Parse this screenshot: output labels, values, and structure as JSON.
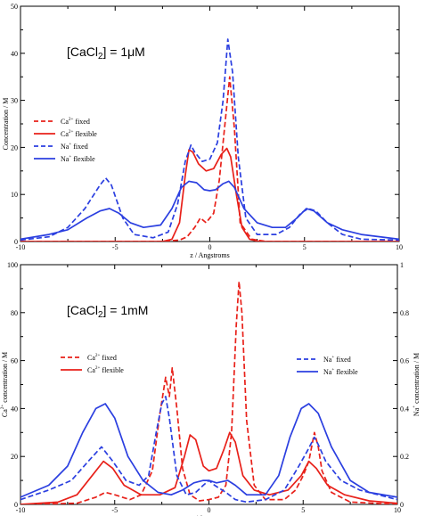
{
  "colors": {
    "red": "#e8211a",
    "blue": "#2b3fe0",
    "axis": "#000000"
  },
  "chart_data": [
    {
      "type": "line",
      "annotation": {
        "pre": "[CaCl",
        "sub": "2",
        "post": "] = 1μM"
      },
      "xlabel": "z / Angstroms",
      "ylabel": "Concentration / M",
      "xlim": [
        -10,
        10
      ],
      "ylim": [
        0,
        50
      ],
      "xticks": [
        -10,
        -5,
        0,
        5,
        10
      ],
      "yticks": [
        0,
        10,
        20,
        30,
        40,
        50
      ],
      "xtick_labels": [
        "-10",
        "-5",
        "0",
        "5",
        "10"
      ],
      "ytick_labels": [
        "0",
        "10",
        "20",
        "30",
        "40",
        "50"
      ],
      "legend_position": "center-left",
      "legend": [
        {
          "ion": "Ca",
          "sup": "2+",
          "label": "fixed",
          "color": "red",
          "style": "dashed"
        },
        {
          "ion": "Ca",
          "sup": "2+",
          "label": "flexible",
          "color": "red",
          "style": "solid"
        },
        {
          "ion": "Na",
          "sup": "+",
          "label": "fixed",
          "color": "blue",
          "style": "dashed"
        },
        {
          "ion": "Na",
          "sup": "+",
          "label": "flexible",
          "color": "blue",
          "style": "solid"
        }
      ],
      "series": [
        {
          "color": "red",
          "style": "dashed",
          "points": [
            [
              -10,
              0
            ],
            [
              -2.5,
              0
            ],
            [
              -1.6,
              0.3
            ],
            [
              -1.2,
              1
            ],
            [
              -0.8,
              3
            ],
            [
              -0.5,
              5
            ],
            [
              -0.2,
              4
            ],
            [
              0.2,
              6
            ],
            [
              0.5,
              13
            ],
            [
              0.8,
              25
            ],
            [
              1.05,
              35
            ],
            [
              1.3,
              24
            ],
            [
              1.6,
              4
            ],
            [
              2.2,
              0.5
            ],
            [
              3,
              0
            ],
            [
              10,
              0
            ]
          ]
        },
        {
          "color": "red",
          "style": "solid",
          "points": [
            [
              -10,
              0
            ],
            [
              -2.5,
              0
            ],
            [
              -2,
              0.5
            ],
            [
              -1.6,
              4
            ],
            [
              -1.3,
              14
            ],
            [
              -1.1,
              19.5
            ],
            [
              -0.9,
              19
            ],
            [
              -0.6,
              16.5
            ],
            [
              -0.2,
              15
            ],
            [
              0.2,
              15.5
            ],
            [
              0.6,
              18.5
            ],
            [
              0.9,
              19.8
            ],
            [
              1.1,
              18
            ],
            [
              1.4,
              10
            ],
            [
              1.7,
              3
            ],
            [
              2.1,
              0.5
            ],
            [
              2.6,
              0
            ],
            [
              10,
              0
            ]
          ]
        },
        {
          "color": "blue",
          "style": "dashed",
          "points": [
            [
              -10,
              0.3
            ],
            [
              -8.5,
              1
            ],
            [
              -7.5,
              3
            ],
            [
              -6.6,
              7
            ],
            [
              -5.8,
              12
            ],
            [
              -5.5,
              13.5
            ],
            [
              -5.2,
              12
            ],
            [
              -4.6,
              5
            ],
            [
              -4,
              1.5
            ],
            [
              -3,
              0.8
            ],
            [
              -2.2,
              2
            ],
            [
              -1.7,
              8
            ],
            [
              -1.3,
              17
            ],
            [
              -1,
              20.5
            ],
            [
              -0.8,
              19
            ],
            [
              -0.4,
              17
            ],
            [
              0,
              17.5
            ],
            [
              0.4,
              21
            ],
            [
              0.7,
              30
            ],
            [
              0.95,
              43
            ],
            [
              1.2,
              36
            ],
            [
              1.5,
              18
            ],
            [
              1.9,
              5
            ],
            [
              2.5,
              1.5
            ],
            [
              3.5,
              1.5
            ],
            [
              4.2,
              3
            ],
            [
              4.8,
              6
            ],
            [
              5.2,
              7
            ],
            [
              5.6,
              6.5
            ],
            [
              6.2,
              4
            ],
            [
              7,
              1.5
            ],
            [
              8,
              0.5
            ],
            [
              10,
              0.3
            ]
          ]
        },
        {
          "color": "blue",
          "style": "solid",
          "points": [
            [
              -10,
              0.5
            ],
            [
              -8.5,
              1.5
            ],
            [
              -7.5,
              2.5
            ],
            [
              -6.5,
              5
            ],
            [
              -5.8,
              6.5
            ],
            [
              -5.3,
              7
            ],
            [
              -4.8,
              6
            ],
            [
              -4.2,
              4
            ],
            [
              -3.5,
              3
            ],
            [
              -2.6,
              3.5
            ],
            [
              -2,
              7
            ],
            [
              -1.5,
              11.5
            ],
            [
              -1.1,
              12.8
            ],
            [
              -0.7,
              12.5
            ],
            [
              -0.3,
              11
            ],
            [
              0,
              10.8
            ],
            [
              0.3,
              11
            ],
            [
              0.7,
              12.3
            ],
            [
              1,
              12.8
            ],
            [
              1.3,
              11.5
            ],
            [
              1.8,
              7
            ],
            [
              2.5,
              4
            ],
            [
              3.3,
              3
            ],
            [
              4,
              3
            ],
            [
              4.6,
              5
            ],
            [
              5.1,
              7
            ],
            [
              5.5,
              6.5
            ],
            [
              6.2,
              4
            ],
            [
              7,
              2.5
            ],
            [
              8,
              1.5
            ],
            [
              10,
              0.5
            ]
          ]
        }
      ]
    },
    {
      "type": "line",
      "annotation": {
        "pre": "[CaCl",
        "sub": "2",
        "post": "] = 1mM"
      },
      "xlabel": "z / Angstrom",
      "ylabel_left": {
        "pre": "Ca",
        "sup": "2+",
        "post": " concentration / M"
      },
      "ylabel_right": {
        "pre": "Na",
        "sup": "+",
        "post": " concentration / M"
      },
      "xlim": [
        -10,
        10
      ],
      "ylim_left": [
        0,
        100
      ],
      "ylim_right": [
        0,
        1
      ],
      "xticks": [
        -10,
        -5,
        0,
        5,
        10
      ],
      "yticks_left": [
        0,
        20,
        40,
        60,
        80,
        100
      ],
      "yticks_right": [
        0,
        0.2,
        0.4,
        0.6,
        0.8,
        1
      ],
      "xtick_labels": [
        "-10",
        "-5",
        "0",
        "5",
        "10"
      ],
      "ytick_labels_left": [
        "0",
        "20",
        "40",
        "60",
        "80",
        "100"
      ],
      "ytick_labels_right": [
        "0",
        "0.2",
        "0.4",
        "0.6",
        "0.8",
        "1"
      ],
      "legend_left": [
        {
          "ion": "Ca",
          "sup": "2+",
          "label": "fixed",
          "color": "red",
          "style": "dashed"
        },
        {
          "ion": "Ca",
          "sup": "2+",
          "label": "flexible",
          "color": "red",
          "style": "solid"
        }
      ],
      "legend_right": [
        {
          "ion": "Na",
          "sup": "+",
          "label": "fixed",
          "color": "blue",
          "style": "dashed"
        },
        {
          "ion": "Na",
          "sup": "+",
          "label": "flexible",
          "color": "blue",
          "style": "solid"
        }
      ],
      "series": [
        {
          "color": "red",
          "style": "dashed",
          "axis": "left",
          "points": [
            [
              -10,
              0
            ],
            [
              -7,
              0.5
            ],
            [
              -6,
              3
            ],
            [
              -5.5,
              5
            ],
            [
              -5,
              4
            ],
            [
              -4.2,
              2
            ],
            [
              -3.6,
              4
            ],
            [
              -3,
              14
            ],
            [
              -2.6,
              38
            ],
            [
              -2.3,
              53
            ],
            [
              -2.1,
              45
            ],
            [
              -1.95,
              57
            ],
            [
              -1.7,
              40
            ],
            [
              -1.4,
              15
            ],
            [
              -1,
              4
            ],
            [
              -0.5,
              1.5
            ],
            [
              0,
              2
            ],
            [
              0.5,
              3
            ],
            [
              0.9,
              8
            ],
            [
              1.2,
              30
            ],
            [
              1.45,
              75
            ],
            [
              1.6,
              93
            ],
            [
              1.75,
              80
            ],
            [
              2,
              35
            ],
            [
              2.4,
              8
            ],
            [
              3,
              2
            ],
            [
              4,
              2
            ],
            [
              4.6,
              6
            ],
            [
              5,
              12
            ],
            [
              5.3,
              18
            ],
            [
              5.6,
              30
            ],
            [
              5.8,
              24
            ],
            [
              6,
              14
            ],
            [
              6.5,
              5
            ],
            [
              7.5,
              1
            ],
            [
              10,
              0
            ]
          ]
        },
        {
          "color": "red",
          "style": "solid",
          "axis": "left",
          "points": [
            [
              -10,
              0
            ],
            [
              -8,
              1
            ],
            [
              -7,
              4
            ],
            [
              -6.2,
              12
            ],
            [
              -5.6,
              18
            ],
            [
              -5.1,
              15
            ],
            [
              -4.5,
              8
            ],
            [
              -3.6,
              4
            ],
            [
              -2.6,
              4
            ],
            [
              -1.8,
              7
            ],
            [
              -1.3,
              20
            ],
            [
              -1,
              29
            ],
            [
              -0.7,
              27
            ],
            [
              -0.3,
              16
            ],
            [
              0,
              14
            ],
            [
              0.4,
              15
            ],
            [
              0.8,
              23
            ],
            [
              1.1,
              30
            ],
            [
              1.4,
              26
            ],
            [
              1.8,
              12
            ],
            [
              2.4,
              6
            ],
            [
              3.2,
              4
            ],
            [
              4.2,
              6
            ],
            [
              4.9,
              12
            ],
            [
              5.3,
              18
            ],
            [
              5.7,
              15
            ],
            [
              6.3,
              8
            ],
            [
              7.2,
              4
            ],
            [
              8.5,
              1.5
            ],
            [
              10,
              0.5
            ]
          ]
        },
        {
          "color": "blue",
          "style": "dashed",
          "axis": "right",
          "points": [
            [
              -10,
              0.02
            ],
            [
              -8.5,
              0.06
            ],
            [
              -7.3,
              0.1
            ],
            [
              -6.4,
              0.18
            ],
            [
              -5.7,
              0.24
            ],
            [
              -5.1,
              0.18
            ],
            [
              -4.4,
              0.1
            ],
            [
              -3.7,
              0.08
            ],
            [
              -3.2,
              0.12
            ],
            [
              -2.8,
              0.3
            ],
            [
              -2.5,
              0.42
            ],
            [
              -2.3,
              0.45
            ],
            [
              -2.1,
              0.36
            ],
            [
              -1.7,
              0.12
            ],
            [
              -1.2,
              0.04
            ],
            [
              -0.7,
              0.05
            ],
            [
              -0.3,
              0.08
            ],
            [
              0,
              0.1
            ],
            [
              0.3,
              0.08
            ],
            [
              0.9,
              0.05
            ],
            [
              1.4,
              0.02
            ],
            [
              2,
              0.01
            ],
            [
              3,
              0.02
            ],
            [
              4,
              0.06
            ],
            [
              4.7,
              0.15
            ],
            [
              5.2,
              0.22
            ],
            [
              5.6,
              0.28
            ],
            [
              5.8,
              0.25
            ],
            [
              6.2,
              0.18
            ],
            [
              7,
              0.1
            ],
            [
              8,
              0.06
            ],
            [
              10,
              0.02
            ]
          ]
        },
        {
          "color": "blue",
          "style": "solid",
          "axis": "right",
          "points": [
            [
              -10,
              0.03
            ],
            [
              -8.5,
              0.08
            ],
            [
              -7.5,
              0.16
            ],
            [
              -6.7,
              0.3
            ],
            [
              -6,
              0.4
            ],
            [
              -5.5,
              0.42
            ],
            [
              -5,
              0.36
            ],
            [
              -4.3,
              0.2
            ],
            [
              -3.5,
              0.1
            ],
            [
              -2.7,
              0.05
            ],
            [
              -2,
              0.04
            ],
            [
              -1.4,
              0.06
            ],
            [
              -0.8,
              0.09
            ],
            [
              -0.3,
              0.1
            ],
            [
              0,
              0.1
            ],
            [
              0.4,
              0.09
            ],
            [
              1,
              0.1
            ],
            [
              1.4,
              0.08
            ],
            [
              2,
              0.04
            ],
            [
              3,
              0.04
            ],
            [
              3.7,
              0.12
            ],
            [
              4.3,
              0.28
            ],
            [
              4.9,
              0.4
            ],
            [
              5.3,
              0.42
            ],
            [
              5.8,
              0.38
            ],
            [
              6.5,
              0.24
            ],
            [
              7.5,
              0.1
            ],
            [
              8.5,
              0.05
            ],
            [
              10,
              0.03
            ]
          ]
        }
      ]
    }
  ]
}
